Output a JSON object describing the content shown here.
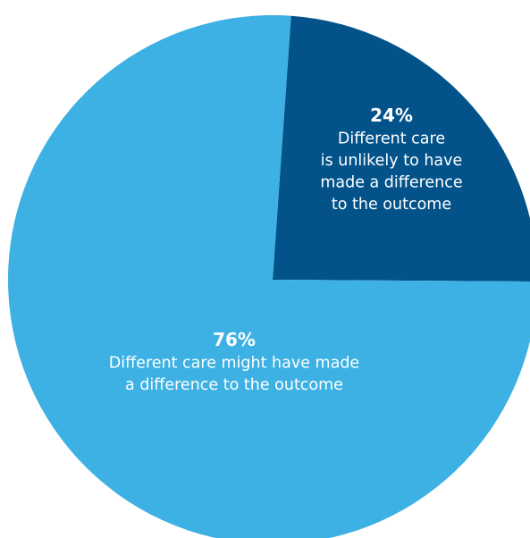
{
  "chart_data": {
    "type": "pie",
    "start_angle_deg": 4,
    "direction": "clockwise",
    "slices": [
      {
        "value": 24,
        "label_value": "24%",
        "label_lines": [
          "Different care",
          "is unlikely to have",
          "made a difference",
          "to the outcome"
        ],
        "color": "#03538A"
      },
      {
        "value": 76,
        "label_value": "76%",
        "label_lines": [
          "Different care might have made",
          "a difference to the outcome"
        ],
        "color": "#3DB1E3"
      }
    ]
  }
}
